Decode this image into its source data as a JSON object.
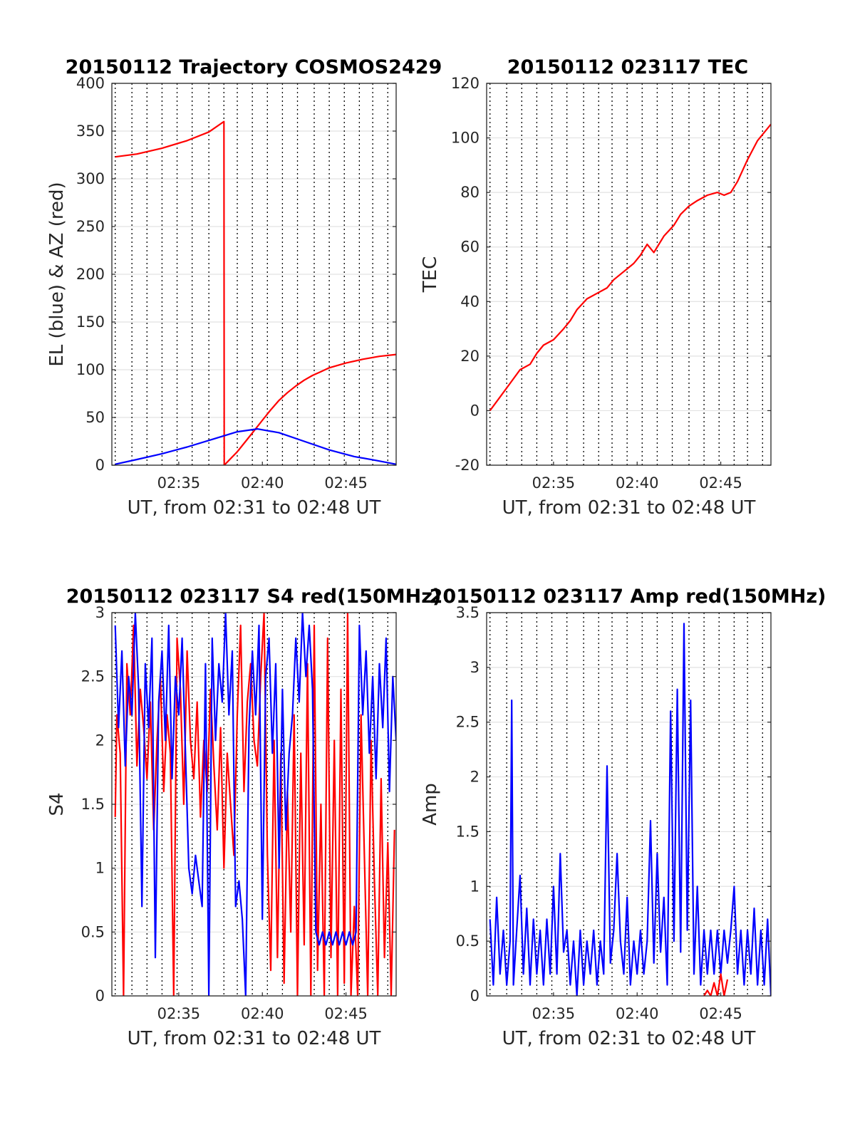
{
  "chart_data": [
    {
      "id": "trajectory",
      "type": "line",
      "title": "20150112 Trajectory COSMOS2429",
      "xlabel": "UT, from 02:31 to 02:48 UT",
      "ylabel": "EL (blue) & AZ (red)",
      "xlim": [
        31.0,
        48.0
      ],
      "ylim": [
        0,
        400
      ],
      "xticks": [
        {
          "v": 35,
          "label": "02:35"
        },
        {
          "v": 40,
          "label": "02:40"
        },
        {
          "v": 45,
          "label": "02:45"
        }
      ],
      "yticks": [
        {
          "v": 0,
          "label": "0"
        },
        {
          "v": 50,
          "label": "50"
        },
        {
          "v": 100,
          "label": "100"
        },
        {
          "v": 150,
          "label": "150"
        },
        {
          "v": 200,
          "label": "200"
        },
        {
          "v": 250,
          "label": "250"
        },
        {
          "v": 300,
          "label": "300"
        },
        {
          "v": 350,
          "label": "350"
        },
        {
          "v": 400,
          "label": "400"
        }
      ],
      "vgrid": [
        31.2,
        32.2,
        33.1,
        34.0,
        34.9,
        35.8,
        36.8,
        37.7,
        38.5,
        39.4,
        40.3,
        41.2,
        42.1,
        43.1,
        44.0,
        44.9,
        45.8,
        46.6,
        47.5
      ],
      "grid": true,
      "series": [
        {
          "color": "#ff0000",
          "x": [
            31.2,
            32.5,
            34.0,
            35.5,
            36.8,
            37.7,
            37.72,
            38.5,
            39.0,
            39.5,
            40.0,
            40.5,
            41.0,
            41.5,
            42.0,
            42.5,
            43.0,
            43.5,
            44.0,
            45.0,
            46.0,
            47.0,
            48.0
          ],
          "y": [
            323,
            326,
            332,
            340,
            349,
            360,
            0,
            14,
            25,
            36,
            47,
            58,
            68,
            76,
            83,
            89,
            94,
            98,
            102,
            107,
            111,
            114,
            116
          ]
        },
        {
          "color": "#0000ff",
          "x": [
            31.2,
            32.5,
            34.0,
            35.5,
            37.0,
            38.5,
            39.7,
            41.0,
            42.5,
            44.0,
            45.5,
            46.8,
            48.0
          ],
          "y": [
            1,
            6,
            12,
            19,
            27,
            35,
            38,
            34,
            25,
            16,
            9,
            5,
            1
          ]
        }
      ]
    },
    {
      "id": "tec",
      "type": "line",
      "title": "20150112 023117 TEC",
      "xlabel": "UT, from 02:31 to 02:48 UT",
      "ylabel": "TEC",
      "xlim": [
        31.0,
        48.0
      ],
      "ylim": [
        -20,
        120
      ],
      "xticks": [
        {
          "v": 35,
          "label": "02:35"
        },
        {
          "v": 40,
          "label": "02:40"
        },
        {
          "v": 45,
          "label": "02:45"
        }
      ],
      "yticks": [
        {
          "v": -20,
          "label": "-20"
        },
        {
          "v": 0,
          "label": "0"
        },
        {
          "v": 20,
          "label": "20"
        },
        {
          "v": 40,
          "label": "40"
        },
        {
          "v": 60,
          "label": "60"
        },
        {
          "v": 80,
          "label": "80"
        },
        {
          "v": 100,
          "label": "100"
        },
        {
          "v": 120,
          "label": "120"
        }
      ],
      "vgrid": [
        31.2,
        32.2,
        33.1,
        34.0,
        34.9,
        35.8,
        36.8,
        37.7,
        38.5,
        39.4,
        40.3,
        41.2,
        42.1,
        43.1,
        44.0,
        44.9,
        45.8,
        46.6,
        47.5
      ],
      "grid": true,
      "series": [
        {
          "color": "#ff0000",
          "x": [
            31.2,
            31.8,
            32.4,
            33.0,
            33.6,
            34.0,
            34.4,
            35.0,
            35.6,
            36.0,
            36.4,
            37.0,
            37.6,
            38.2,
            38.6,
            39.2,
            39.8,
            40.2,
            40.6,
            41.0,
            41.6,
            42.2,
            42.6,
            43.1,
            43.6,
            44.2,
            44.8,
            45.2,
            45.6,
            46.0,
            46.6,
            47.2,
            48.0
          ],
          "y": [
            0,
            5,
            10,
            15,
            17,
            21,
            24,
            26,
            30,
            33,
            37,
            41,
            43,
            45,
            48,
            51,
            54,
            57,
            61,
            58,
            64,
            68,
            72,
            75,
            77,
            79,
            80,
            79,
            80,
            84,
            92,
            99,
            105
          ]
        }
      ]
    },
    {
      "id": "s4",
      "type": "line",
      "title": "20150112 023117 S4 red(150MHz)",
      "xlabel": "UT, from 02:31 to 02:48 UT",
      "ylabel": "S4",
      "xlim": [
        31.0,
        48.0
      ],
      "ylim": [
        0,
        3
      ],
      "xticks": [
        {
          "v": 35,
          "label": "02:35"
        },
        {
          "v": 40,
          "label": "02:40"
        },
        {
          "v": 45,
          "label": "02:45"
        }
      ],
      "yticks": [
        {
          "v": 0,
          "label": "0"
        },
        {
          "v": 0.5,
          "label": "0.5"
        },
        {
          "v": 1,
          "label": "1"
        },
        {
          "v": 1.5,
          "label": "1.5"
        },
        {
          "v": 2,
          "label": "2"
        },
        {
          "v": 2.5,
          "label": "2.5"
        },
        {
          "v": 3,
          "label": "3"
        }
      ],
      "vgrid": [
        31.2,
        32.2,
        33.1,
        34.0,
        34.9,
        35.8,
        36.8,
        37.7,
        38.5,
        39.4,
        40.3,
        41.2,
        42.1,
        43.1,
        44.0,
        44.9,
        45.8,
        46.6,
        47.5
      ],
      "grid": true,
      "series": [
        {
          "color": "#ff0000",
          "x": [
            31.2,
            31.3,
            31.5,
            31.7,
            31.9,
            32.1,
            32.3,
            32.5,
            32.7,
            32.9,
            33.1,
            33.3,
            33.5,
            33.7,
            33.9,
            34.1,
            34.3,
            34.5,
            34.7,
            34.9,
            35.1,
            35.3,
            35.5,
            35.7,
            35.9,
            36.1,
            36.3,
            36.5,
            36.7,
            36.9,
            37.1,
            37.3,
            37.5,
            37.7,
            37.9,
            38.1,
            38.3,
            38.5,
            38.7,
            38.9,
            39.1,
            39.3,
            39.5,
            39.7,
            39.9,
            40.1,
            40.3,
            40.5,
            40.7,
            40.9,
            41.1,
            41.3,
            41.5,
            41.7,
            41.9,
            42.1,
            42.3,
            42.5,
            42.7,
            42.9,
            43.1,
            43.3,
            43.5,
            43.7,
            43.9,
            44.1,
            44.3,
            44.5,
            44.7,
            44.9,
            45.1,
            45.3,
            45.5,
            45.7,
            45.9,
            46.1,
            46.3,
            46.5,
            46.7,
            46.9,
            47.1,
            47.3,
            47.5,
            47.7,
            47.9
          ],
          "y": [
            1.4,
            2.2,
            1.9,
            0.0,
            2.6,
            2.2,
            2.9,
            1.8,
            2.4,
            2.1,
            1.7,
            2.3,
            1.3,
            2.0,
            2.5,
            1.6,
            2.2,
            1.9,
            0.0,
            2.8,
            2.4,
            1.5,
            2.7,
            2.0,
            1.7,
            2.3,
            1.4,
            2.0,
            1.6,
            2.4,
            1.8,
            1.3,
            2.1,
            1.0,
            1.9,
            1.5,
            1.1,
            2.2,
            2.9,
            1.6,
            2.3,
            2.6,
            2.0,
            1.8,
            2.5,
            3.0,
            1.1,
            0.2,
            2.0,
            0.3,
            1.9,
            0.1,
            1.6,
            0.5,
            2.2,
            0.0,
            1.9,
            0.4,
            2.6,
            0.0,
            2.9,
            0.2,
            1.5,
            0.0,
            2.8,
            0.3,
            2.0,
            0.0,
            2.4,
            0.1,
            3.0,
            0.0,
            0.7,
            0.0,
            2.2,
            1.1,
            0.0,
            2.0,
            0.9,
            0.0,
            1.7,
            0.3,
            1.2,
            0.0,
            1.3
          ]
        },
        {
          "color": "#0000ff",
          "x": [
            31.2,
            31.4,
            31.6,
            31.8,
            32.0,
            32.2,
            32.4,
            32.6,
            32.8,
            33.0,
            33.2,
            33.4,
            33.6,
            33.8,
            34.0,
            34.2,
            34.4,
            34.6,
            34.8,
            35.0,
            35.2,
            35.4,
            35.6,
            35.8,
            36.0,
            36.2,
            36.4,
            36.6,
            36.8,
            37.0,
            37.2,
            37.4,
            37.6,
            37.8,
            38.0,
            38.2,
            38.4,
            38.6,
            38.8,
            39.0,
            39.2,
            39.4,
            39.6,
            39.8,
            40.0,
            40.2,
            40.4,
            40.6,
            40.8,
            41.0,
            41.2,
            41.4,
            41.6,
            41.8,
            42.0,
            42.2,
            42.4,
            42.6,
            42.8,
            43.0,
            43.2,
            43.4,
            43.6,
            43.8,
            44.0,
            44.2,
            44.4,
            44.6,
            44.8,
            45.0,
            45.2,
            45.4,
            45.6,
            45.8,
            46.0,
            46.2,
            46.4,
            46.6,
            46.8,
            47.0,
            47.2,
            47.4,
            47.6,
            47.8,
            48.0
          ],
          "y": [
            2.9,
            2.1,
            2.7,
            1.8,
            2.5,
            2.2,
            3.0,
            2.4,
            0.7,
            2.6,
            2.1,
            2.8,
            0.3,
            2.3,
            2.7,
            2.0,
            2.9,
            1.7,
            2.5,
            2.2,
            2.8,
            1.9,
            1.0,
            0.8,
            1.1,
            0.9,
            0.7,
            2.6,
            0.0,
            2.8,
            2.0,
            2.6,
            2.3,
            3.0,
            2.2,
            2.7,
            0.7,
            0.9,
            0.6,
            0.0,
            2.1,
            2.7,
            2.2,
            2.9,
            0.6,
            2.5,
            2.8,
            1.9,
            2.6,
            1.0,
            2.4,
            1.3,
            1.9,
            2.2,
            2.8,
            2.3,
            3.0,
            2.5,
            2.9,
            2.4,
            0.5,
            0.4,
            0.5,
            0.4,
            0.5,
            0.4,
            0.5,
            0.4,
            0.5,
            0.4,
            0.5,
            0.4,
            0.5,
            2.9,
            2.2,
            2.7,
            1.9,
            2.5,
            1.7,
            2.6,
            2.1,
            2.8,
            1.6,
            2.5,
            2.0
          ]
        }
      ]
    },
    {
      "id": "amp",
      "type": "line",
      "title": "20150112 023117 Amp red(150MHz)",
      "xlabel": "UT, from 02:31 to 02:48 UT",
      "ylabel": "Amp",
      "xlim": [
        31.0,
        48.0
      ],
      "ylim": [
        0,
        3.5
      ],
      "xticks": [
        {
          "v": 35,
          "label": "02:35"
        },
        {
          "v": 40,
          "label": "02:40"
        },
        {
          "v": 45,
          "label": "02:45"
        }
      ],
      "yticks": [
        {
          "v": 0,
          "label": "0"
        },
        {
          "v": 0.5,
          "label": "0.5"
        },
        {
          "v": 1,
          "label": "1"
        },
        {
          "v": 1.5,
          "label": "1.5"
        },
        {
          "v": 2,
          "label": "2"
        },
        {
          "v": 2.5,
          "label": "2.5"
        },
        {
          "v": 3,
          "label": "3"
        },
        {
          "v": 3.5,
          "label": "3.5"
        }
      ],
      "vgrid": [
        31.2,
        32.2,
        33.1,
        34.0,
        34.9,
        35.8,
        36.8,
        37.7,
        38.5,
        39.4,
        40.3,
        41.2,
        42.1,
        43.1,
        44.0,
        44.9,
        45.8,
        46.6,
        47.5
      ],
      "grid": true,
      "series": [
        {
          "color": "#0000ff",
          "x": [
            31.2,
            31.4,
            31.6,
            31.8,
            32.0,
            32.2,
            32.4,
            32.5,
            32.6,
            32.8,
            33.0,
            33.2,
            33.4,
            33.6,
            33.8,
            34.0,
            34.2,
            34.4,
            34.6,
            34.8,
            35.0,
            35.2,
            35.4,
            35.6,
            35.8,
            36.0,
            36.2,
            36.4,
            36.6,
            36.8,
            37.0,
            37.2,
            37.4,
            37.6,
            37.8,
            38.0,
            38.2,
            38.4,
            38.6,
            38.8,
            39.0,
            39.2,
            39.4,
            39.6,
            39.8,
            40.0,
            40.2,
            40.4,
            40.6,
            40.8,
            41.0,
            41.2,
            41.4,
            41.6,
            41.8,
            42.0,
            42.2,
            42.4,
            42.6,
            42.8,
            43.0,
            43.2,
            43.4,
            43.6,
            43.8,
            44.0,
            44.2,
            44.4,
            44.6,
            44.8,
            45.0,
            45.2,
            45.4,
            45.6,
            45.8,
            46.0,
            46.2,
            46.4,
            46.6,
            46.8,
            47.0,
            47.2,
            47.4,
            47.6,
            47.8,
            48.0
          ],
          "y": [
            0.7,
            0.1,
            0.9,
            0.2,
            0.6,
            0.1,
            0.5,
            2.7,
            0.1,
            0.6,
            1.1,
            0.2,
            0.8,
            0.1,
            0.7,
            0.2,
            0.6,
            0.1,
            0.7,
            0.2,
            1.0,
            0.2,
            1.3,
            0.4,
            0.6,
            0.1,
            0.5,
            0.0,
            0.6,
            0.1,
            0.5,
            0.2,
            0.6,
            0.1,
            0.5,
            0.2,
            2.1,
            0.3,
            0.6,
            1.3,
            0.5,
            0.2,
            0.9,
            0.1,
            0.5,
            0.2,
            0.6,
            0.2,
            0.5,
            1.6,
            0.3,
            1.3,
            0.4,
            0.9,
            0.1,
            2.6,
            0.5,
            2.8,
            0.4,
            3.4,
            0.6,
            2.7,
            0.2,
            1.0,
            0.1,
            0.6,
            0.2,
            0.6,
            0.2,
            0.6,
            0.2,
            0.6,
            0.3,
            0.6,
            1.0,
            0.2,
            0.6,
            0.1,
            0.6,
            0.2,
            0.8,
            0.1,
            0.6,
            0.1,
            0.7,
            0.0
          ]
        },
        {
          "color": "#ff0000",
          "x": [
            44.0,
            44.2,
            44.4,
            44.6,
            44.8,
            45.0,
            45.2,
            45.4
          ],
          "y": [
            0.0,
            0.05,
            0.0,
            0.12,
            0.0,
            0.2,
            0.0,
            0.15
          ]
        }
      ]
    }
  ]
}
